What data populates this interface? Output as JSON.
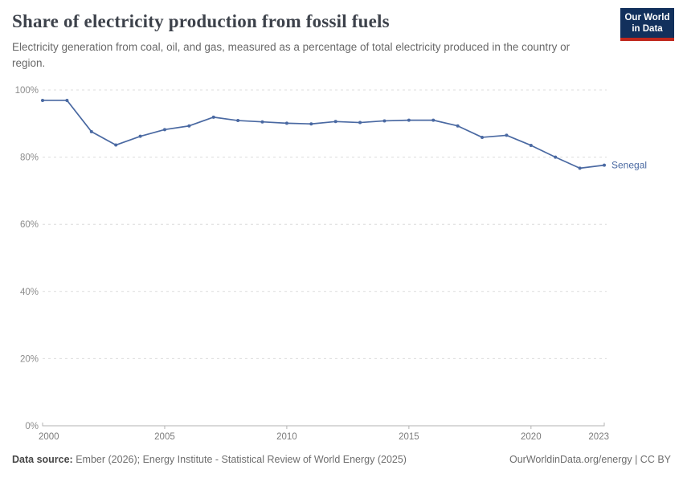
{
  "header": {
    "title": "Share of electricity production from fossil fuels",
    "subtitle": "Electricity generation from coal, oil, and gas, measured as a percentage of total electricity produced in the country or region.",
    "logo": {
      "line1": "Our World",
      "line2": "in Data",
      "bg_color": "#12305c",
      "stripe_color": "#bf271c"
    }
  },
  "chart_data": {
    "type": "line",
    "title": "Share of electricity production from fossil fuels",
    "entity": "Senegal",
    "x": [
      2000,
      2001,
      2002,
      2003,
      2004,
      2005,
      2006,
      2007,
      2008,
      2009,
      2010,
      2011,
      2012,
      2013,
      2014,
      2015,
      2016,
      2017,
      2018,
      2019,
      2020,
      2021,
      2022,
      2023
    ],
    "series": [
      {
        "name": "Senegal",
        "color": "#4a69a2",
        "values": [
          96.9,
          96.9,
          87.6,
          83.6,
          86.2,
          88.2,
          89.3,
          91.9,
          90.9,
          90.5,
          90.1,
          89.9,
          90.6,
          90.3,
          90.8,
          91.0,
          91.0,
          89.3,
          85.9,
          86.5,
          83.5,
          80.0,
          76.7,
          77.6
        ]
      }
    ],
    "xlabel": "",
    "ylabel": "",
    "ylim": [
      0,
      100
    ],
    "yticks": [
      0,
      20,
      40,
      60,
      80,
      100
    ],
    "ytick_format": "{v}%",
    "xticks": [
      2000,
      2005,
      2010,
      2015,
      2020,
      2023
    ],
    "grid": "horizontal-dashed",
    "legend": "end-of-line-label",
    "grid_color": "#dcdcdc",
    "axis_color": "#b3b3b3",
    "ytick_label_color": "#8c8c8c",
    "xtick_label_color": "#7b7b7b"
  },
  "footer": {
    "datasource_label": "Data source:",
    "datasource_text": " Ember (2026); Energy Institute - Statistical Review of World Energy (2025)",
    "link_text": "OurWorldinData.org/energy | CC BY"
  }
}
